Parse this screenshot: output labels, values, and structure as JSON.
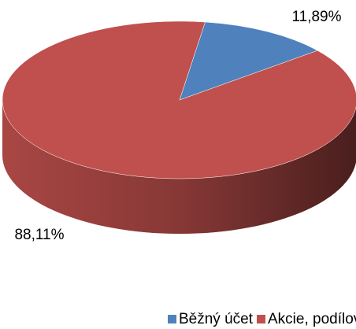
{
  "chart_data": {
    "type": "pie",
    "categories": [
      "Běžný účet",
      "Akcie, podílové listy"
    ],
    "values": [
      11.89,
      88.11
    ],
    "value_labels": [
      "11,89%",
      "88,11%"
    ],
    "colors": [
      "#4f81bd",
      "#c0504d"
    ],
    "legend": "bottom"
  }
}
